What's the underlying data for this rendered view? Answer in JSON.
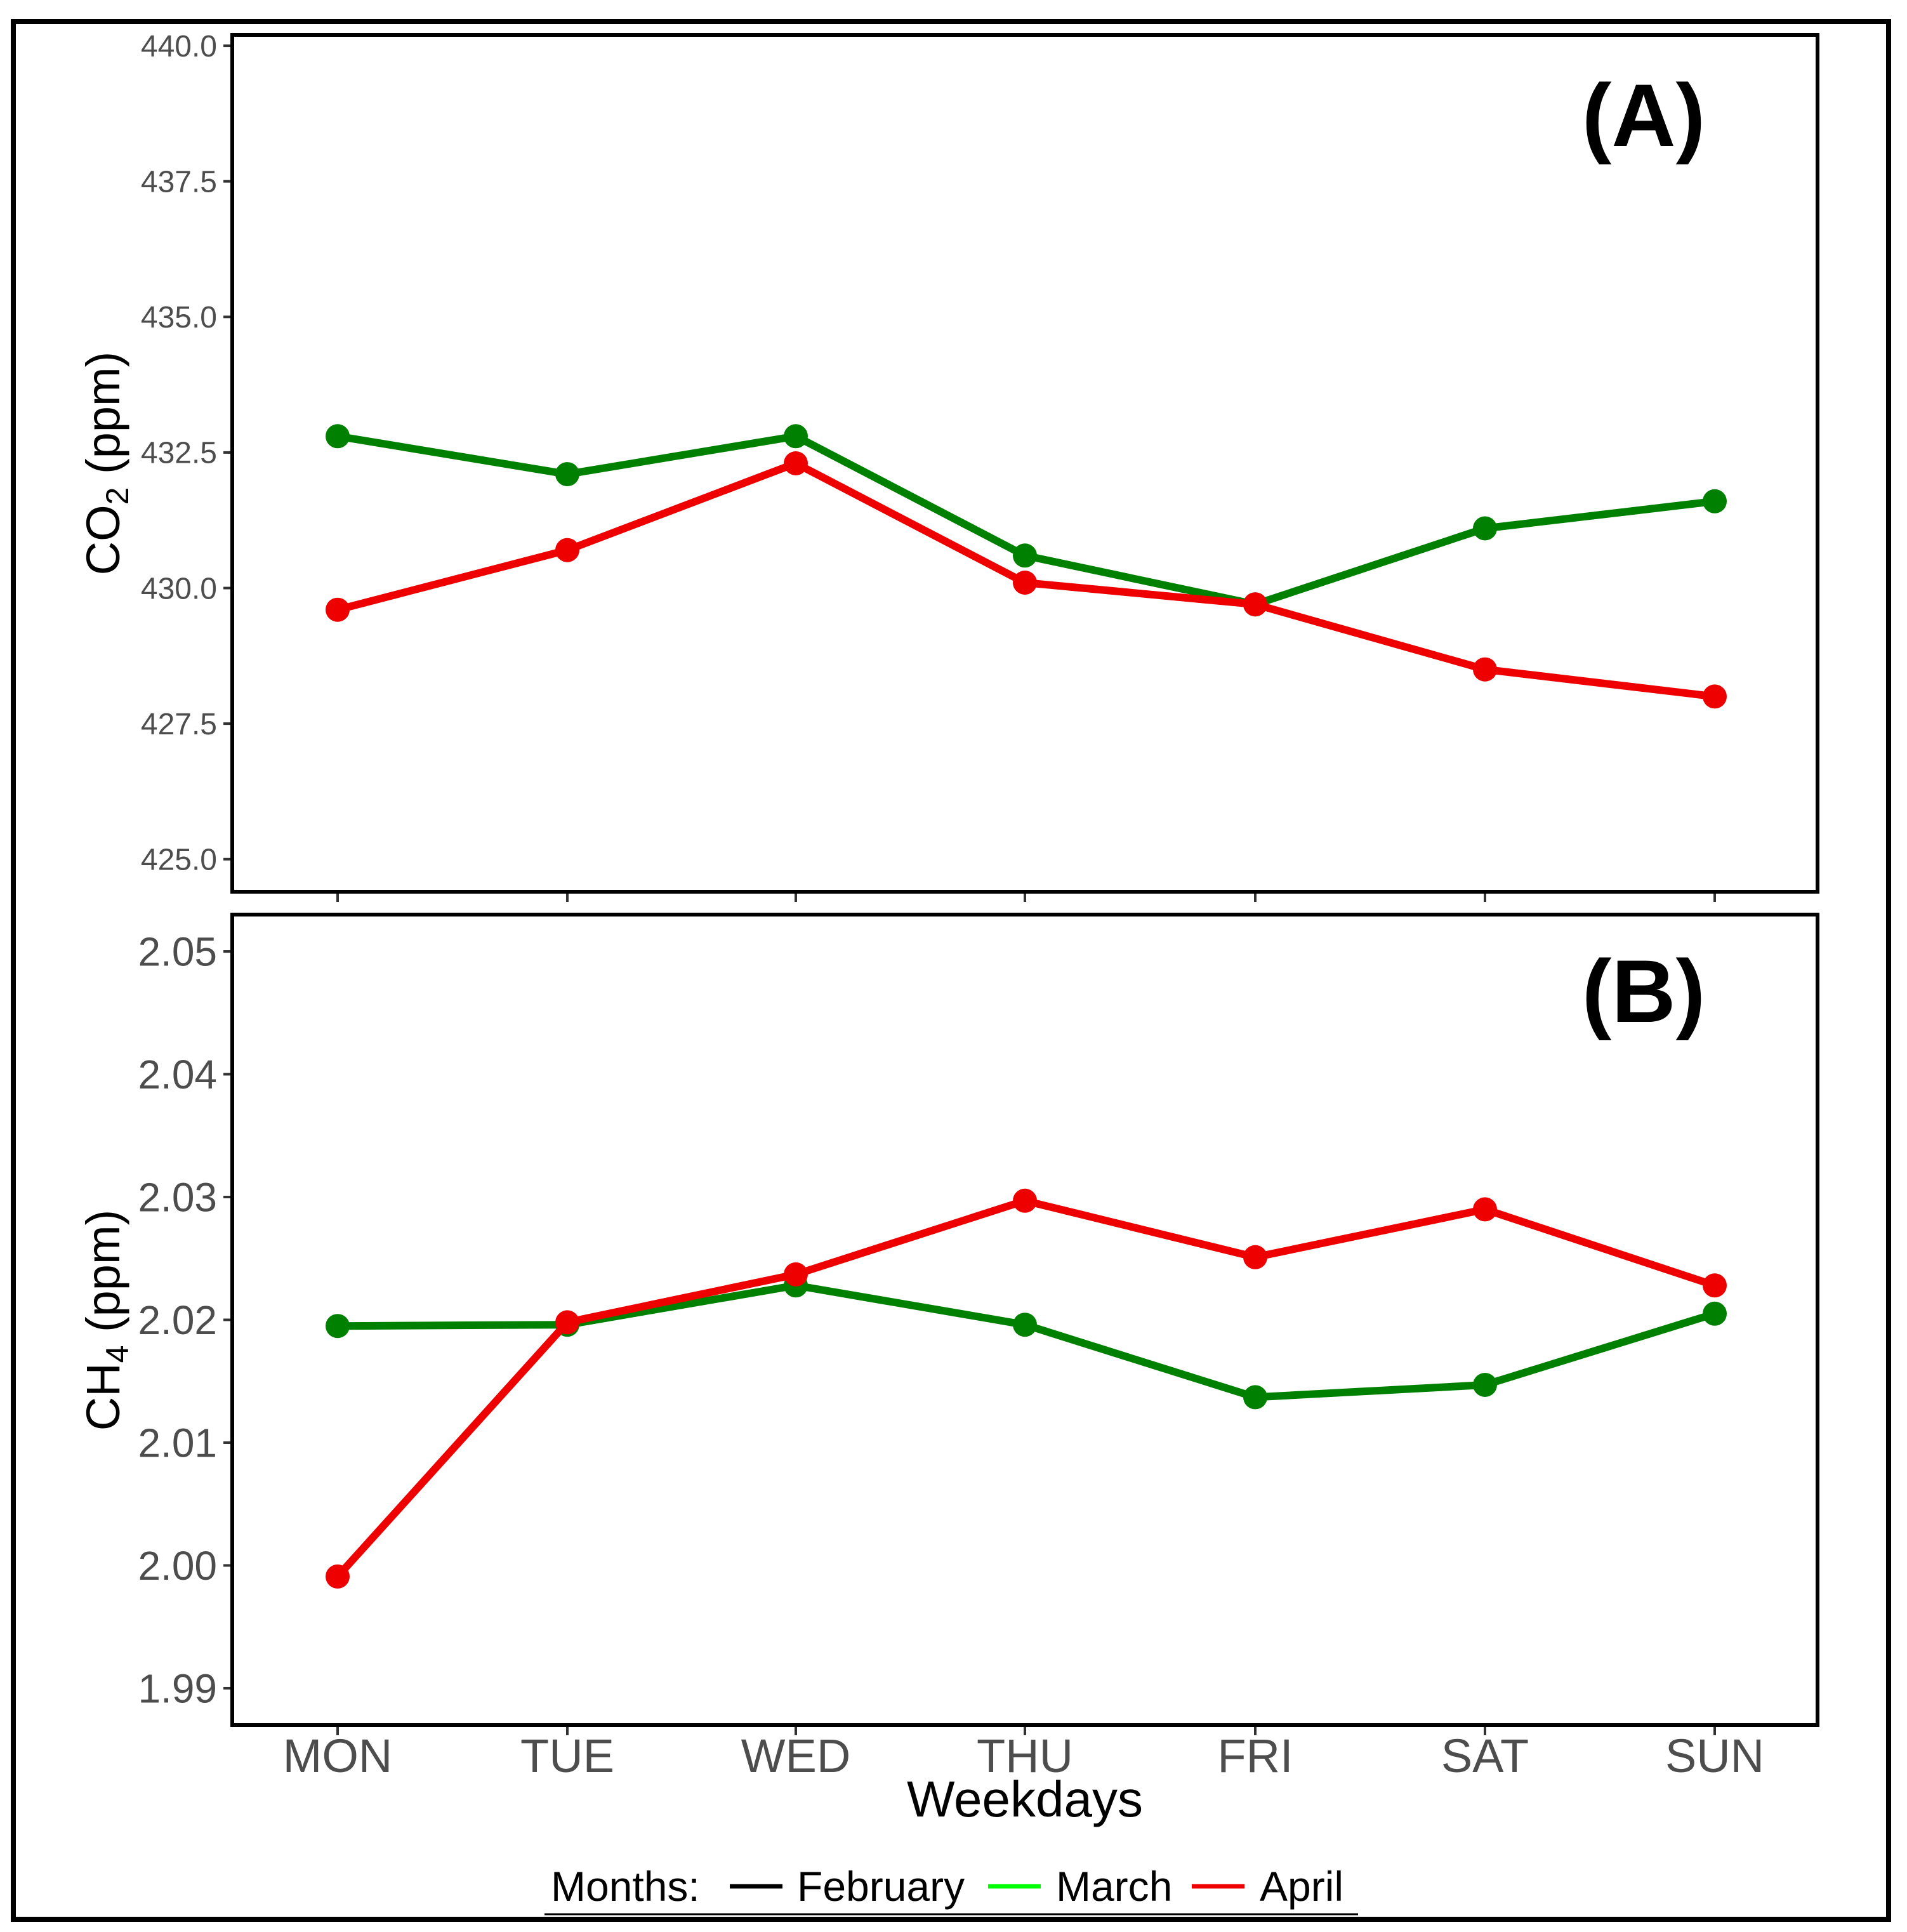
{
  "colors": {
    "february": "#000000",
    "march_point": "#008000",
    "march_legend": "#00ff00",
    "april": "#ee0000",
    "panel_border": "#000000",
    "tick_text": "#4d4d4d"
  },
  "chart_data": [
    {
      "type": "line",
      "panel_label": "(A)",
      "ylabel_main": "CO",
      "ylabel_sub": "2",
      "ylabel_rest": " (ppm)",
      "ylim": [
        424.4,
        440.2
      ],
      "yticks": [
        {
          "value": 425.0,
          "label": "425.0"
        },
        {
          "value": 427.5,
          "label": "427.5"
        },
        {
          "value": 430.0,
          "label": "430.0"
        },
        {
          "value": 432.5,
          "label": "432.5"
        },
        {
          "value": 435.0,
          "label": "435.0"
        },
        {
          "value": 437.5,
          "label": "437.5"
        },
        {
          "value": 440.0,
          "label": "440.0"
        }
      ],
      "categories": [
        "MON",
        "TUE",
        "WED",
        "THU",
        "FRI",
        "SAT",
        "SUN"
      ],
      "series": [
        {
          "name": "March",
          "color": "#008000",
          "values": [
            432.8,
            432.1,
            432.8,
            430.6,
            429.7,
            431.1,
            431.6
          ]
        },
        {
          "name": "April",
          "color": "#ee0000",
          "values": [
            429.6,
            430.7,
            432.3,
            430.1,
            429.7,
            428.5,
            428.0
          ]
        }
      ]
    },
    {
      "type": "line",
      "panel_label": "(B)",
      "ylabel_main": "CH",
      "ylabel_sub": "4",
      "ylabel_rest": " (ppm)",
      "ylim": [
        1.987,
        2.053
      ],
      "yticks": [
        {
          "value": 1.99,
          "label": "1.99"
        },
        {
          "value": 2.0,
          "label": "2.00"
        },
        {
          "value": 2.01,
          "label": "2.01"
        },
        {
          "value": 2.02,
          "label": "2.02"
        },
        {
          "value": 2.03,
          "label": "2.03"
        },
        {
          "value": 2.04,
          "label": "2.04"
        },
        {
          "value": 2.05,
          "label": "2.05"
        }
      ],
      "categories": [
        "MON",
        "TUE",
        "WED",
        "THU",
        "FRI",
        "SAT",
        "SUN"
      ],
      "series": [
        {
          "name": "March",
          "color": "#008000",
          "values": [
            2.0195,
            2.0196,
            2.0228,
            2.0196,
            2.0137,
            2.0147,
            2.0205
          ]
        },
        {
          "name": "April",
          "color": "#ee0000",
          "values": [
            1.9991,
            2.0198,
            2.0237,
            2.0297,
            2.0251,
            2.029,
            2.0228
          ]
        }
      ]
    }
  ],
  "xlabel": "Weekdays",
  "legend": {
    "title": "Months:",
    "entries": [
      {
        "label": "February",
        "color": "#000000"
      },
      {
        "label": "March",
        "color": "#00ff00"
      },
      {
        "label": "April",
        "color": "#ee0000"
      }
    ]
  }
}
